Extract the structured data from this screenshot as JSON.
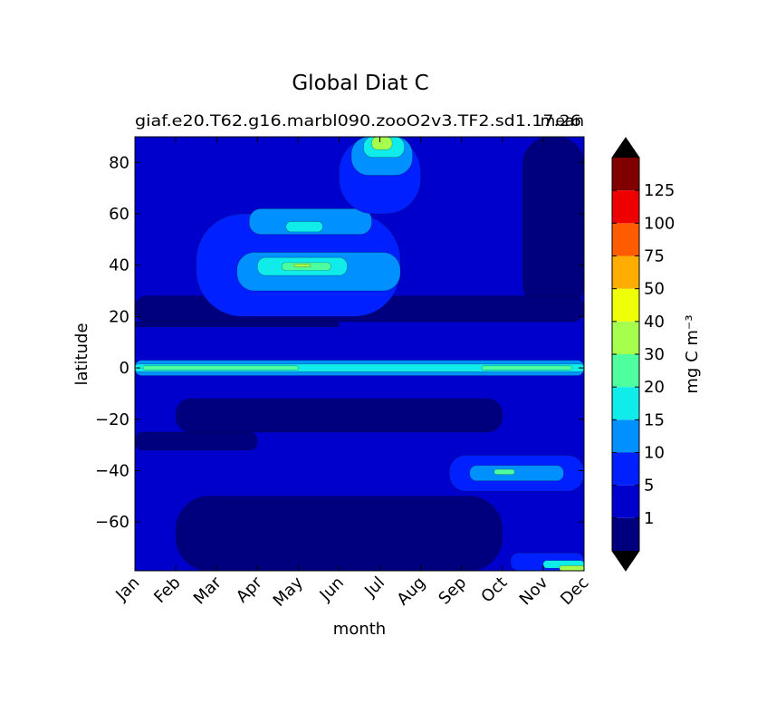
{
  "chart_data": {
    "type": "heatmap",
    "title": "Global Diat C",
    "subtitle_left": "giaf.e20.T62.g16.marbl090.zooO2v3.TF2.sd1.17.26",
    "subtitle_right": "mean",
    "xlabel": "month",
    "ylabel": "latitude",
    "x_ticks": [
      "Jan",
      "Feb",
      "Mar",
      "Apr",
      "May",
      "Jun",
      "Jul",
      "Aug",
      "Sep",
      "Oct",
      "Nov",
      "Dec"
    ],
    "y_ticks": [
      80,
      60,
      40,
      20,
      0,
      -20,
      -40,
      -60
    ],
    "y_tick_labels": [
      "80",
      "60",
      "40",
      "20",
      "0",
      "−20",
      "−40",
      "−60"
    ],
    "ylim": [
      -79,
      90
    ],
    "xlim": [
      0,
      11
    ],
    "colorbar": {
      "label": "mg C m⁻³",
      "levels": [
        0,
        1,
        5,
        10,
        15,
        20,
        30,
        40,
        50,
        75,
        100,
        125,
        150
      ],
      "tick_labels": [
        "1",
        "5",
        "10",
        "15",
        "20",
        "30",
        "40",
        "50",
        "75",
        "100",
        "125"
      ],
      "colors": [
        "#00007f",
        "#0000cd",
        "#0020ff",
        "#0090ff",
        "#0fecea",
        "#4dff9f",
        "#a7ff4d",
        "#eeff08",
        "#ffad00",
        "#ff5b00",
        "#ef0000",
        "#800000"
      ],
      "under_color": "#ffffff",
      "over_color": "#000000"
    },
    "regions": [
      {
        "lat": [
          22,
          90
        ],
        "month": [
          9.5,
          11
        ],
        "level_index": 0
      },
      {
        "lat": [
          18,
          28
        ],
        "month": [
          0,
          11
        ],
        "level_index": 0
      },
      {
        "lat": [
          16,
          18
        ],
        "month": [
          0,
          5
        ],
        "level_index": 0
      },
      {
        "lat": [
          -25,
          -12
        ],
        "month": [
          1,
          9
        ],
        "level_index": 0
      },
      {
        "lat": [
          -32,
          -25
        ],
        "month": [
          0,
          3
        ],
        "level_index": 0
      },
      {
        "lat": [
          -79,
          -50
        ],
        "month": [
          1,
          9
        ],
        "level_index": 0
      },
      {
        "lat": [
          20,
          60
        ],
        "month": [
          1.5,
          6.5
        ],
        "level_index": 2
      },
      {
        "lat": [
          30,
          45
        ],
        "month": [
          2.5,
          6.5
        ],
        "level_index": 3
      },
      {
        "lat": [
          36,
          43
        ],
        "month": [
          3,
          5.2
        ],
        "level_index": 4
      },
      {
        "lat": [
          38,
          41
        ],
        "month": [
          3.6,
          4.8
        ],
        "level_index": 5
      },
      {
        "lat": [
          39.3,
          40.5
        ],
        "month": [
          3.9,
          4.3
        ],
        "level_index": 6
      },
      {
        "lat": [
          52,
          62
        ],
        "month": [
          2.8,
          5.8
        ],
        "level_index": 3
      },
      {
        "lat": [
          53,
          57
        ],
        "month": [
          3.7,
          4.6
        ],
        "level_index": 4
      },
      {
        "lat": [
          60,
          90
        ],
        "month": [
          5,
          7
        ],
        "level_index": 2
      },
      {
        "lat": [
          75,
          90
        ],
        "month": [
          5.3,
          6.8
        ],
        "level_index": 3
      },
      {
        "lat": [
          82,
          90
        ],
        "month": [
          5.6,
          6.6
        ],
        "level_index": 4
      },
      {
        "lat": [
          85,
          90
        ],
        "month": [
          5.8,
          6.3
        ],
        "level_index": 6
      },
      {
        "lat": [
          -3,
          3
        ],
        "month": [
          0,
          11
        ],
        "level_index": 3
      },
      {
        "lat": [
          -1.5,
          1.5
        ],
        "month": [
          0,
          11
        ],
        "level_index": 4
      },
      {
        "lat": [
          -0.8,
          0.8
        ],
        "month": [
          0.2,
          4
        ],
        "level_index": 5
      },
      {
        "lat": [
          -0.8,
          0.8
        ],
        "month": [
          8.5,
          10.7
        ],
        "level_index": 5
      },
      {
        "lat": [
          -48,
          -34
        ],
        "month": [
          7.7,
          11
        ],
        "level_index": 2
      },
      {
        "lat": [
          -44,
          -38
        ],
        "month": [
          8.2,
          10.5
        ],
        "level_index": 3
      },
      {
        "lat": [
          -41.5,
          -39.5
        ],
        "month": [
          8.8,
          9.3
        ],
        "level_index": 5
      },
      {
        "lat": [
          -79,
          -72
        ],
        "month": [
          9.2,
          11
        ],
        "level_index": 2
      },
      {
        "lat": [
          -78,
          -75
        ],
        "month": [
          10,
          11
        ],
        "level_index": 4
      },
      {
        "lat": [
          -79,
          -77
        ],
        "month": [
          10.4,
          11
        ],
        "level_index": 6
      }
    ]
  }
}
